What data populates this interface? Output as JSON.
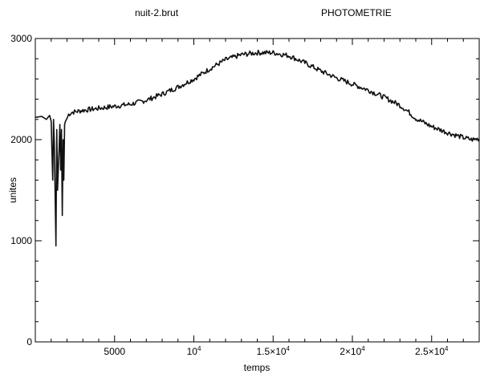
{
  "header": {
    "left_title": "nuit-2.brut",
    "right_title": "PHOTOMETRIE"
  },
  "chart_data": {
    "type": "line",
    "title": "",
    "xlabel": "temps",
    "ylabel": "unites",
    "xlim": [
      0,
      28000
    ],
    "ylim": [
      0,
      3000
    ],
    "grid": false,
    "x_ticks": [
      {
        "value": 5000,
        "label": "5000"
      },
      {
        "value": 10000,
        "label": "10",
        "exp": "4"
      },
      {
        "value": 15000,
        "label": "1.5×10",
        "exp": "4"
      },
      {
        "value": 20000,
        "label": "2×10",
        "exp": "4"
      },
      {
        "value": 25000,
        "label": "2.5×10",
        "exp": "4"
      }
    ],
    "y_ticks": [
      {
        "value": 0,
        "label": "0"
      },
      {
        "value": 1000,
        "label": "1000"
      },
      {
        "value": 2000,
        "label": "2000"
      },
      {
        "value": 3000,
        "label": "3000"
      }
    ],
    "series": [
      {
        "color": "#111111",
        "x": [
          0,
          400,
          700,
          900,
          1000,
          1100,
          1150,
          1200,
          1300,
          1350,
          1400,
          1500,
          1550,
          1600,
          1650,
          1700,
          1750,
          1800,
          1850,
          1900,
          2000,
          2100,
          2300,
          3000,
          4000,
          5000,
          6000,
          7000,
          8000,
          9000,
          10000,
          11000,
          12000,
          13000,
          14000,
          15000,
          16000,
          17000,
          18000,
          19000,
          20000,
          21000,
          22000,
          23000,
          23500,
          24000,
          25000,
          26000,
          27000,
          27500,
          28000
        ],
        "y": [
          2220,
          2230,
          2200,
          2240,
          2180,
          1600,
          2200,
          1950,
          950,
          2100,
          1500,
          1900,
          2150,
          1700,
          2100,
          1250,
          2000,
          1600,
          2150,
          2180,
          2210,
          2250,
          2270,
          2290,
          2310,
          2330,
          2350,
          2390,
          2450,
          2520,
          2600,
          2700,
          2790,
          2840,
          2860,
          2860,
          2830,
          2760,
          2680,
          2610,
          2550,
          2490,
          2420,
          2340,
          2280,
          2210,
          2130,
          2070,
          2020,
          2000,
          2010
        ]
      }
    ]
  }
}
